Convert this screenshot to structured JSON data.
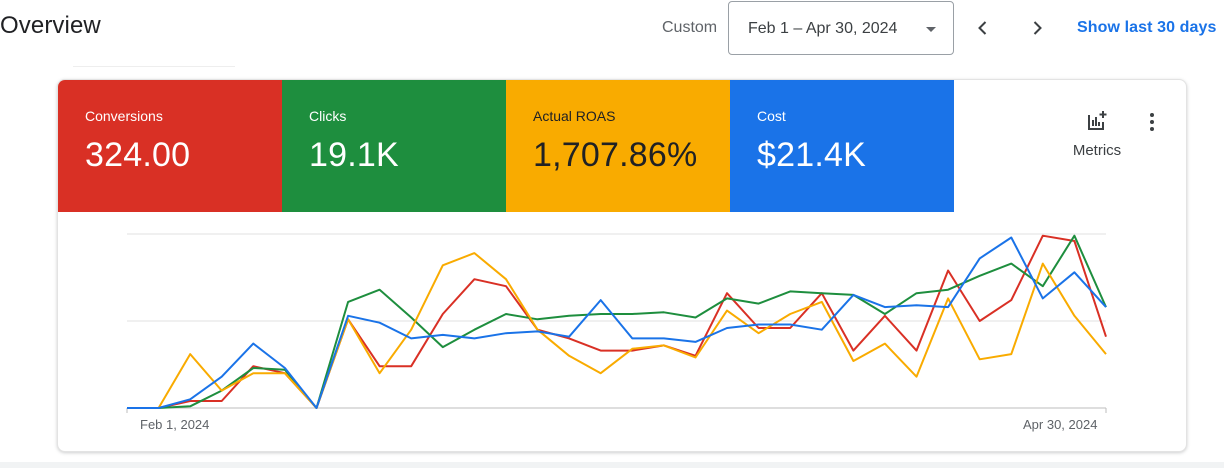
{
  "header": {
    "title": "Overview",
    "date_label": "Custom",
    "date_range": "Feb 1 – Apr 30, 2024",
    "show_last": "Show last 30 days"
  },
  "tiles": [
    {
      "label": "Conversions",
      "value": "324.00",
      "color": "#d93025",
      "text_color": "#ffffff"
    },
    {
      "label": "Clicks",
      "value": "19.1K",
      "color": "#1e8e3e",
      "text_color": "#ffffff"
    },
    {
      "label": "Actual ROAS",
      "value": "1,707.86%",
      "color": "#f9ab00",
      "text_color": "#202124"
    },
    {
      "label": "Cost",
      "value": "$21.4K",
      "color": "#1a73e8",
      "text_color": "#ffffff"
    }
  ],
  "toolbar": {
    "metrics_label": "Metrics",
    "metrics_icon": "add-chart-icon",
    "more_icon": "more-vert-icon"
  },
  "chart_data": {
    "type": "line",
    "x_labels": [
      "Feb 1, 2024",
      "Apr 30, 2024"
    ],
    "ylim": [
      0,
      1
    ],
    "grid": true,
    "series": [
      {
        "color": "#d93025",
        "values": [
          0,
          0,
          0.04,
          0.04,
          0.24,
          0.2,
          0,
          0.51,
          0.24,
          0.24,
          0.54,
          0.74,
          0.7,
          0.45,
          0.4,
          0.33,
          0.33,
          0.36,
          0.3,
          0.66,
          0.46,
          0.46,
          0.66,
          0.33,
          0.53,
          0.33,
          0.79,
          0.5,
          0.62,
          0.99,
          0.96,
          0.41
        ]
      },
      {
        "color": "#1e8e3e",
        "values": [
          0,
          0,
          0.01,
          0.1,
          0.23,
          0.22,
          0,
          0.61,
          0.68,
          0.52,
          0.35,
          0.45,
          0.54,
          0.51,
          0.53,
          0.54,
          0.54,
          0.55,
          0.52,
          0.63,
          0.6,
          0.67,
          0.66,
          0.65,
          0.54,
          0.66,
          0.68,
          0.76,
          0.83,
          0.7,
          0.99,
          0.58
        ]
      },
      {
        "color": "#f9ab00",
        "values": [
          0,
          0,
          0.31,
          0.1,
          0.2,
          0.2,
          0,
          0.51,
          0.2,
          0.45,
          0.82,
          0.89,
          0.74,
          0.45,
          0.3,
          0.2,
          0.34,
          0.36,
          0.29,
          0.56,
          0.43,
          0.54,
          0.61,
          0.27,
          0.37,
          0.18,
          0.63,
          0.28,
          0.31,
          0.83,
          0.53,
          0.31
        ]
      },
      {
        "color": "#1a73e8",
        "values": [
          0,
          0,
          0.05,
          0.18,
          0.37,
          0.23,
          0,
          0.53,
          0.49,
          0.4,
          0.42,
          0.4,
          0.43,
          0.44,
          0.41,
          0.62,
          0.4,
          0.4,
          0.38,
          0.46,
          0.48,
          0.48,
          0.45,
          0.65,
          0.58,
          0.59,
          0.58,
          0.86,
          0.98,
          0.63,
          0.78,
          0.58
        ]
      }
    ]
  }
}
